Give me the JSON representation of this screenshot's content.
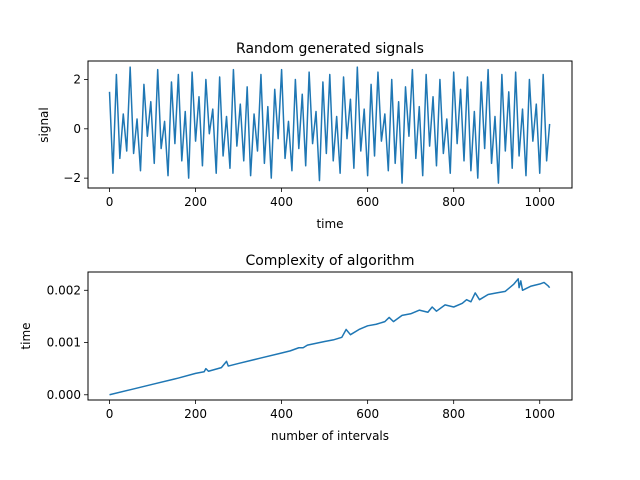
{
  "chart_data": [
    {
      "type": "line",
      "title": "Random generated signals",
      "xlabel": "time",
      "ylabel": "signal",
      "xlim": [
        -50,
        1075
      ],
      "ylim": [
        -2.4,
        2.75
      ],
      "xticks": [
        0,
        200,
        400,
        600,
        800,
        1000
      ],
      "yticks": [
        -2,
        0,
        2
      ],
      "xtick_labels": [
        "0",
        "200",
        "400",
        "600",
        "800",
        "1000"
      ],
      "ytick_labels": [
        "−2",
        "0",
        "2"
      ],
      "grid": false,
      "color": "#1f77b4",
      "series": [
        {
          "x": [
            0,
            8,
            16,
            24,
            32,
            40,
            48,
            56,
            64,
            72,
            80,
            88,
            96,
            104,
            112,
            120,
            128,
            136,
            144,
            152,
            160,
            168,
            176,
            184,
            192,
            200,
            208,
            216,
            224,
            232,
            240,
            248,
            256,
            264,
            272,
            280,
            288,
            296,
            304,
            312,
            320,
            328,
            336,
            344,
            352,
            360,
            368,
            376,
            384,
            392,
            400,
            408,
            416,
            424,
            432,
            440,
            448,
            456,
            464,
            472,
            480,
            488,
            496,
            504,
            512,
            520,
            528,
            536,
            544,
            552,
            560,
            568,
            576,
            584,
            592,
            600,
            608,
            616,
            624,
            632,
            640,
            648,
            656,
            664,
            672,
            680,
            688,
            696,
            704,
            712,
            720,
            728,
            736,
            744,
            752,
            760,
            768,
            776,
            784,
            792,
            800,
            808,
            816,
            824,
            832,
            840,
            848,
            856,
            864,
            872,
            880,
            888,
            896,
            904,
            912,
            920,
            928,
            936,
            944,
            952,
            960,
            968,
            976,
            984,
            992,
            1000,
            1008,
            1016,
            1023
          ],
          "y": [
            1.5,
            -1.8,
            2.2,
            -1.2,
            0.6,
            -0.9,
            2.5,
            -1.0,
            0.4,
            -1.7,
            1.8,
            -0.3,
            1.1,
            -1.4,
            2.4,
            -0.8,
            0.3,
            -1.9,
            1.9,
            -0.6,
            2.2,
            -1.3,
            0.7,
            -2.0,
            2.3,
            -0.5,
            1.3,
            -1.5,
            2.0,
            -0.2,
            0.8,
            -1.8,
            2.1,
            -1.1,
            0.5,
            -1.6,
            2.4,
            -0.7,
            1.0,
            -1.3,
            1.7,
            -1.9,
            0.6,
            -0.9,
            2.2,
            -1.4,
            0.9,
            -2.0,
            1.6,
            -0.4,
            2.4,
            -1.2,
            0.3,
            -1.7,
            2.0,
            -0.8,
            1.4,
            -1.5,
            2.3,
            -0.6,
            0.7,
            -2.1,
            1.9,
            -1.0,
            2.2,
            -1.3,
            0.5,
            -1.8,
            2.1,
            -0.4,
            1.2,
            -1.6,
            2.5,
            -0.9,
            0.8,
            -1.9,
            1.8,
            -1.1,
            2.3,
            -0.5,
            0.6,
            -1.7,
            2.0,
            -1.4,
            1.1,
            -2.2,
            1.7,
            -0.3,
            2.4,
            -1.2,
            0.9,
            -1.9,
            2.2,
            -0.7,
            1.3,
            -1.5,
            2.0,
            -1.0,
            0.4,
            -1.8,
            2.3,
            -0.6,
            1.6,
            -1.3,
            2.1,
            -1.7,
            0.7,
            -2.0,
            1.9,
            -0.8,
            2.4,
            -1.4,
            0.5,
            -2.2,
            2.2,
            -0.9,
            1.5,
            -1.6,
            2.3,
            -1.1,
            0.8,
            -1.9,
            2.0,
            -0.5,
            1.0,
            -1.8,
            2.2,
            -1.3,
            0.2
          ]
        }
      ]
    },
    {
      "type": "line",
      "title": "Complexity of algorithm",
      "xlabel": "number of intervals",
      "ylabel": "time",
      "xlim": [
        -50,
        1075
      ],
      "ylim": [
        -0.0001,
        0.00235
      ],
      "xticks": [
        0,
        200,
        400,
        600,
        800,
        1000
      ],
      "yticks": [
        0,
        0.001,
        0.002
      ],
      "xtick_labels": [
        "0",
        "200",
        "400",
        "600",
        "800",
        "1000"
      ],
      "ytick_labels": [
        "0.000",
        "0.001",
        "0.002"
      ],
      "grid": false,
      "color": "#1f77b4",
      "series": [
        {
          "x": [
            0,
            50,
            100,
            150,
            160,
            200,
            220,
            224,
            230,
            260,
            272,
            276,
            300,
            350,
            400,
            420,
            440,
            450,
            460,
            500,
            520,
            540,
            550,
            560,
            580,
            600,
            620,
            640,
            650,
            660,
            680,
            700,
            720,
            740,
            750,
            760,
            780,
            800,
            820,
            830,
            840,
            850,
            860,
            880,
            900,
            920,
            940,
            950,
            952,
            956,
            960,
            980,
            1000,
            1010,
            1020,
            1023
          ],
          "y": [
            0,
            0.0001,
            0.0002,
            0.0003,
            0.00032,
            0.00041,
            0.00044,
            0.0005,
            0.00045,
            0.00052,
            0.00064,
            0.00055,
            0.0006,
            0.0007,
            0.0008,
            0.00084,
            0.0009,
            0.0009,
            0.00095,
            0.00102,
            0.00105,
            0.0011,
            0.00125,
            0.00115,
            0.00125,
            0.00132,
            0.00135,
            0.0014,
            0.00148,
            0.0014,
            0.00152,
            0.00155,
            0.00162,
            0.00158,
            0.00168,
            0.0016,
            0.00172,
            0.00168,
            0.00175,
            0.00182,
            0.00178,
            0.00195,
            0.00182,
            0.00192,
            0.00195,
            0.00198,
            0.00212,
            0.00222,
            0.00205,
            0.00218,
            0.002,
            0.00208,
            0.00212,
            0.00215,
            0.00208,
            0.00205
          ]
        }
      ]
    }
  ]
}
